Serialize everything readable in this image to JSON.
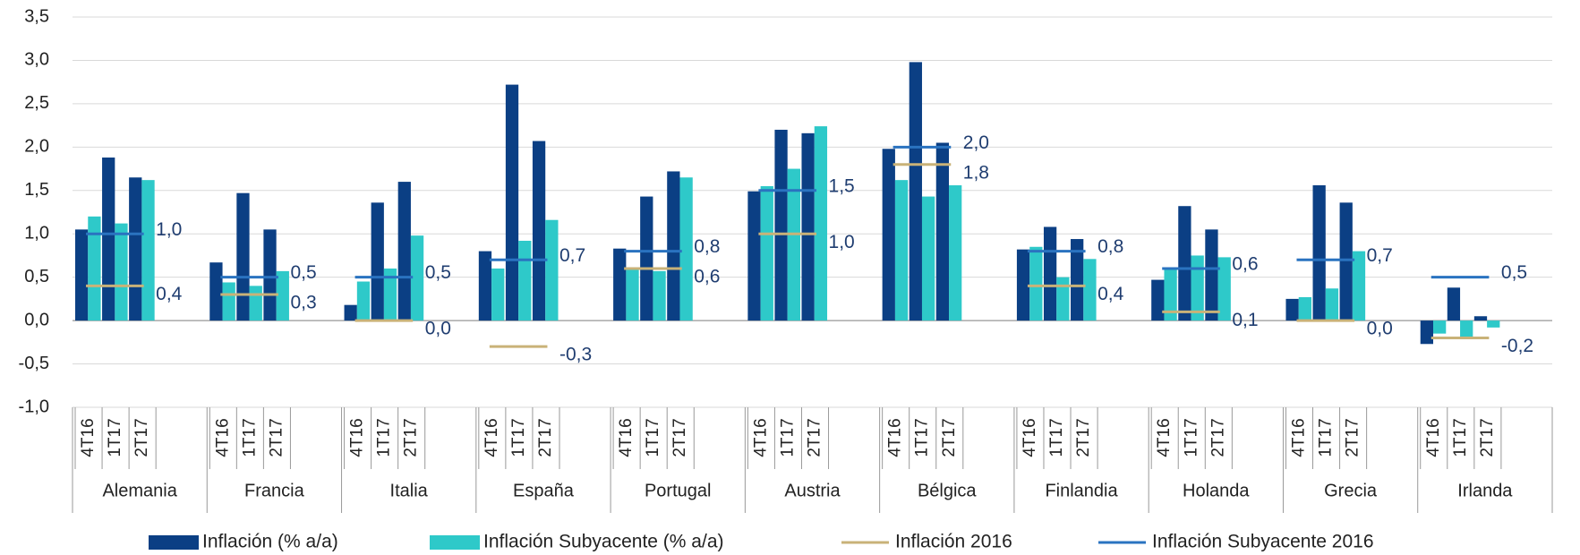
{
  "chart_data": {
    "type": "bar",
    "categories": [
      "Alemania",
      "Francia",
      "Italia",
      "España",
      "Portugal",
      "Austria",
      "Bélgica",
      "Finlandia",
      "Holanda",
      "Grecia",
      "Irlanda"
    ],
    "periods": [
      "4T16",
      "1T17",
      "2T17"
    ],
    "ylim": [
      -1.0,
      3.5
    ],
    "yticks": [
      {
        "value": -1.0,
        "label": "-1,0"
      },
      {
        "value": -0.5,
        "label": "-0,5"
      },
      {
        "value": 0,
        "label": "0,0"
      },
      {
        "value": 0.5,
        "label": "0,5"
      },
      {
        "value": 1.0,
        "label": "1,0"
      },
      {
        "value": 1.5,
        "label": "1,5"
      },
      {
        "value": 2.0,
        "label": "2,0"
      },
      {
        "value": 2.5,
        "label": "2,5"
      },
      {
        "value": 3.0,
        "label": "3,0"
      },
      {
        "value": 3.5,
        "label": "3,5"
      }
    ],
    "grid": true,
    "series": [
      {
        "name": "Inflación (% a/a)",
        "color": "#0b3f84",
        "kind": "bar",
        "values": [
          [
            1.05,
            1.88,
            1.65
          ],
          [
            0.67,
            1.47,
            1.05
          ],
          [
            0.18,
            1.36,
            1.6
          ],
          [
            0.8,
            2.72,
            2.07
          ],
          [
            0.83,
            1.43,
            1.72
          ],
          [
            1.49,
            2.2,
            2.16
          ],
          [
            1.98,
            2.98,
            2.05
          ],
          [
            0.82,
            1.08,
            0.94
          ],
          [
            0.47,
            1.32,
            1.05
          ],
          [
            0.25,
            1.56,
            1.36
          ],
          [
            -0.27,
            0.38,
            0.05
          ]
        ]
      },
      {
        "name": "Inflación Subyacente (% a/a)",
        "color": "#2ec9c9",
        "kind": "bar",
        "values": [
          [
            1.2,
            1.12,
            1.62
          ],
          [
            0.44,
            0.4,
            0.57
          ],
          [
            0.45,
            0.6,
            0.98
          ],
          [
            0.6,
            0.92,
            1.16
          ],
          [
            0.6,
            0.57,
            1.65
          ],
          [
            1.55,
            1.75,
            2.24
          ],
          [
            1.62,
            1.43,
            1.56
          ],
          [
            0.85,
            0.5,
            0.71
          ],
          [
            0.6,
            0.75,
            0.73
          ],
          [
            0.27,
            0.37,
            0.8
          ],
          [
            -0.15,
            -0.2,
            -0.08
          ]
        ]
      },
      {
        "name": "Inflación 2016",
        "color": "#c9b278",
        "kind": "level",
        "values": [
          0.4,
          0.3,
          0.0,
          -0.3,
          0.6,
          1.0,
          1.8,
          0.4,
          0.1,
          0.0,
          -0.2
        ],
        "value_labels": [
          "0,4",
          "0,3",
          "0,0",
          "-0,3",
          "0,6",
          "1,0",
          "1,8",
          "0,4",
          "0,1",
          "0,0",
          "-0,2"
        ]
      },
      {
        "name": "Inflación Subyacente 2016",
        "color": "#2a73c0",
        "kind": "level",
        "values": [
          1.0,
          0.5,
          0.5,
          0.7,
          0.8,
          1.5,
          2.0,
          0.8,
          0.6,
          0.7,
          0.5
        ],
        "value_labels": [
          "1,0",
          "0,5",
          "0,5",
          "0,7",
          "0,8",
          "1,5",
          "2,0",
          "0,8",
          "0,6",
          "0,7",
          "0,5"
        ]
      }
    ]
  }
}
